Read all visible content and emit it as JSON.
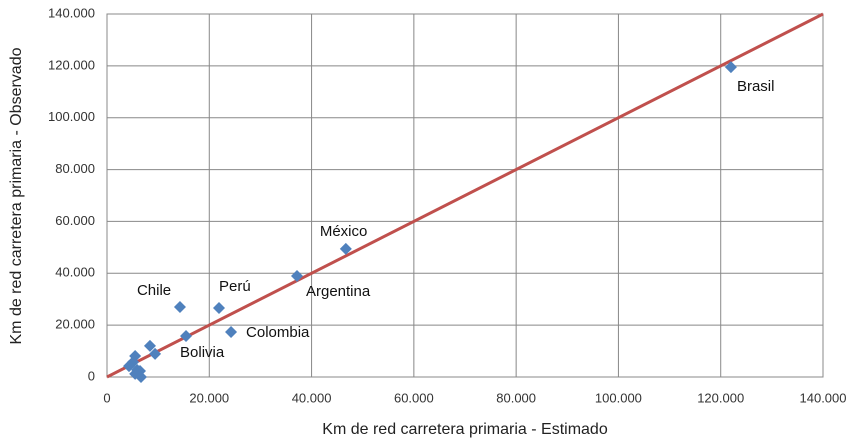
{
  "chart_data": {
    "type": "scatter",
    "x_label": "Km de red carretera primaria - Estimado",
    "y_label": "Km de red carretera primaria - Observado",
    "x": [
      122000,
      46700,
      37150,
      21900,
      14270,
      24250,
      15450,
      8400,
      9400,
      5500,
      5100,
      4300,
      5900,
      6450,
      5500,
      6650
    ],
    "y": [
      119500,
      49400,
      38950,
      26600,
      27000,
      17350,
      15800,
      12000,
      8900,
      8100,
      5800,
      4200,
      2700,
      2300,
      1200,
      0
    ],
    "point_labels": [
      "Brasil",
      "México",
      "Argentina",
      "Perú",
      "Chile",
      "Colombia",
      "Bolivia",
      null,
      null,
      null,
      null,
      null,
      null,
      null,
      null,
      null
    ],
    "color": "#4f81bd",
    "reference_line": {
      "x": [
        0,
        140000
      ],
      "y": [
        0,
        140000
      ],
      "color": "#c0504d"
    },
    "xlim": [
      0,
      140000
    ],
    "ylim": [
      0,
      140000
    ],
    "xticks": [
      0,
      {
        "value": 20000,
        "label": "20.000"
      },
      {
        "value": 40000,
        "label": "40.000"
      },
      {
        "value": 60000,
        "label": "60.000"
      },
      {
        "value": 80000,
        "label": "80.000"
      },
      {
        "value": 100000,
        "label": "100.000"
      },
      {
        "value": 120000,
        "label": "120.000"
      },
      {
        "value": 140000,
        "label": "140.000"
      }
    ],
    "yticks": [
      0,
      {
        "value": 20000,
        "label": "20.000"
      },
      {
        "value": 40000,
        "label": "40.000"
      },
      {
        "value": 60000,
        "label": "60.000"
      },
      {
        "value": 80000,
        "label": "80.000"
      },
      {
        "value": 100000,
        "label": "100.000"
      },
      {
        "value": 120000,
        "label": "120.000"
      },
      {
        "value": 140000,
        "label": "140.000"
      }
    ],
    "grid": true
  }
}
